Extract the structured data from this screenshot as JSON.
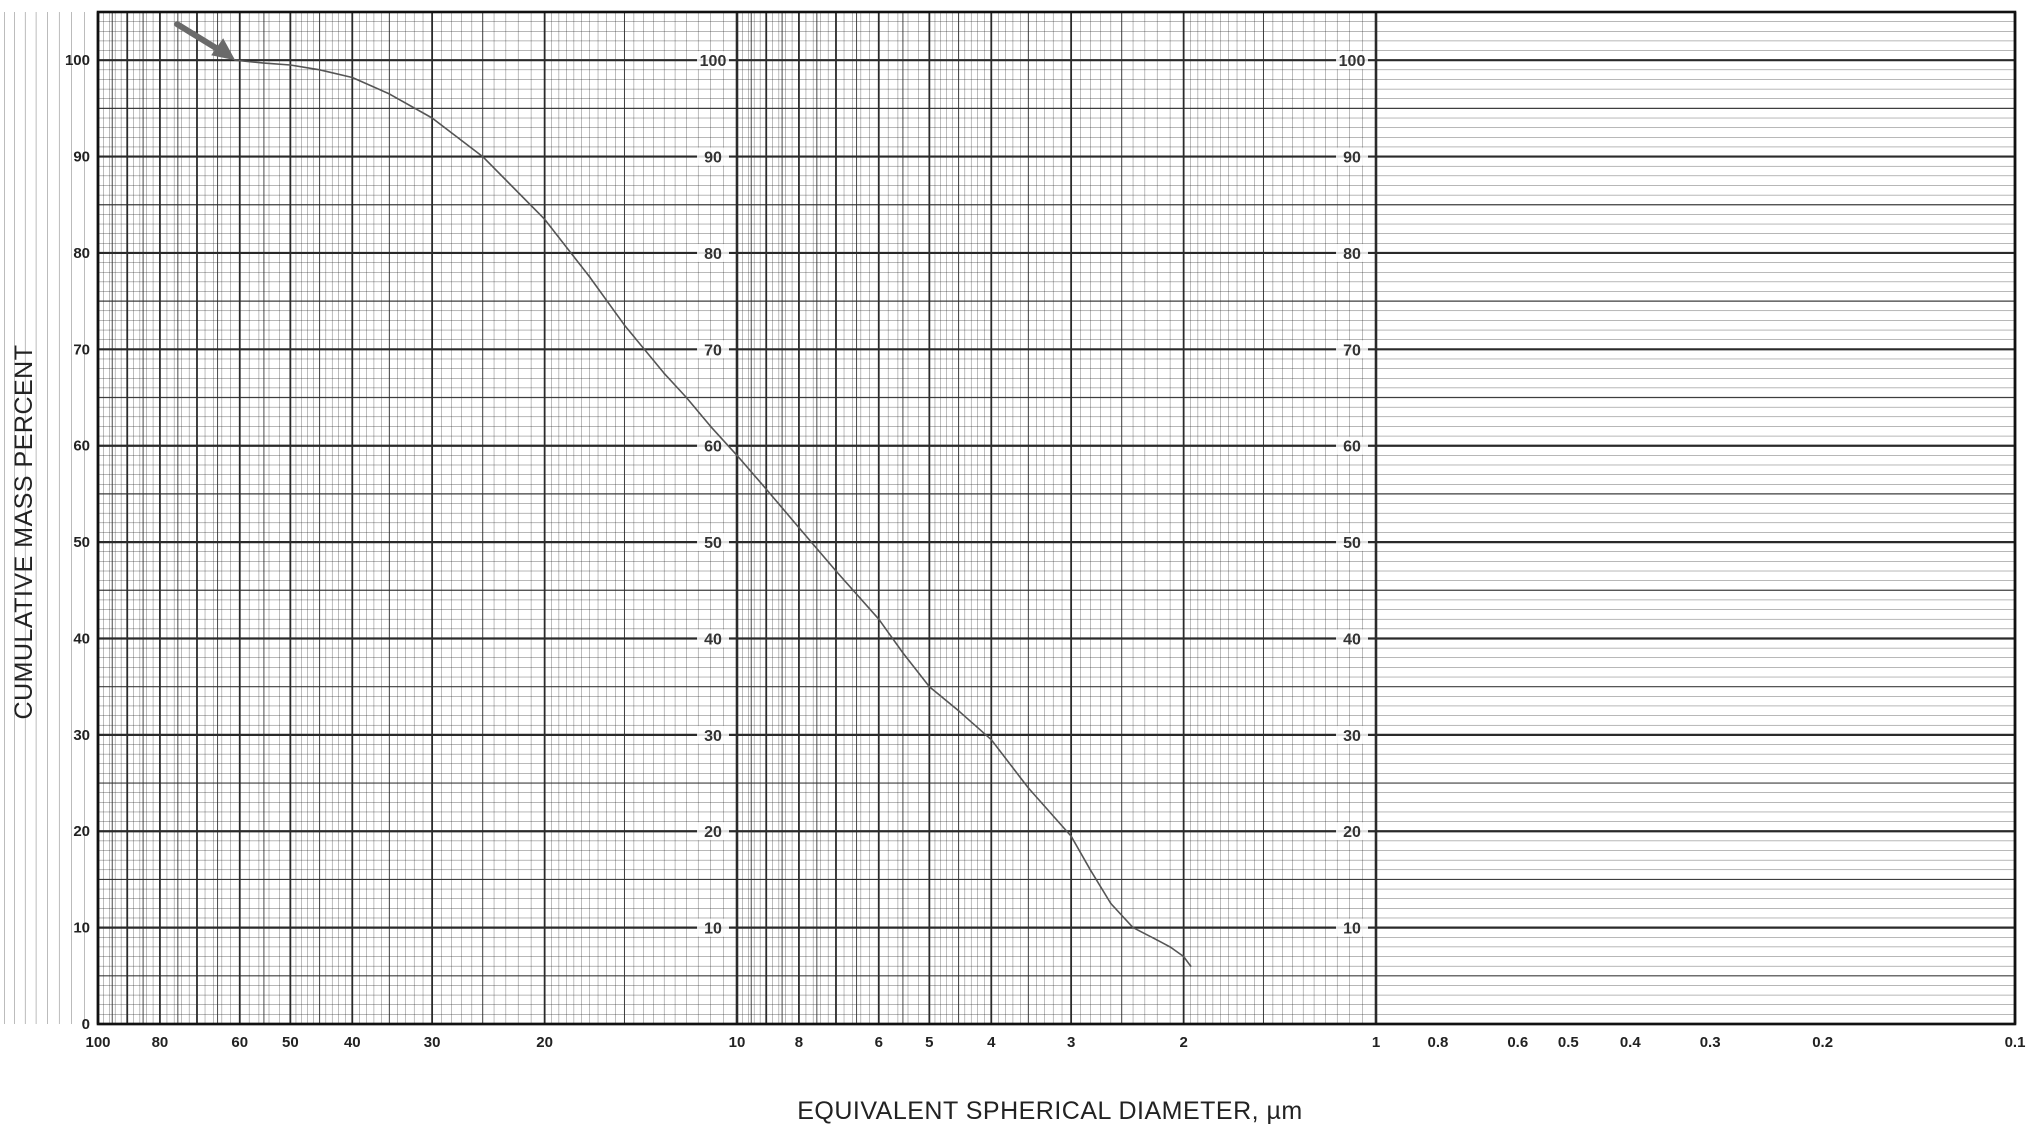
{
  "chart_data": {
    "type": "line",
    "title": "",
    "xlabel": "EQUIVALENT SPHERICAL DIAMETER, µm",
    "ylabel": "CUMULATIVE MASS PERCENT",
    "x_scale": "log",
    "x_direction": "decreasing",
    "xlim": [
      100,
      0.1
    ],
    "ylim": [
      0,
      105
    ],
    "grid": true,
    "legend": "none",
    "x_tick_labels": [
      "100",
      "80",
      "60",
      "50",
      "40",
      "30",
      "20",
      "10",
      "8",
      "6",
      "5",
      "4",
      "3",
      "2",
      "1",
      "0.8",
      "0.6",
      "0.5",
      "0.4",
      "0.3",
      "0.2",
      "0.1"
    ],
    "x_tick_values": [
      100,
      80,
      60,
      50,
      40,
      30,
      20,
      10,
      8,
      6,
      5,
      4,
      3,
      2,
      1,
      0.8,
      0.6,
      0.5,
      0.4,
      0.3,
      0.2,
      0.1
    ],
    "y_tick_labels": [
      "0",
      "10",
      "20",
      "30",
      "40",
      "50",
      "60",
      "70",
      "80",
      "90",
      "100"
    ],
    "y_tick_values": [
      0,
      10,
      20,
      30,
      40,
      50,
      60,
      70,
      80,
      90,
      100
    ],
    "inner_scale_labels": [
      "10",
      "20",
      "30",
      "40",
      "50",
      "60",
      "70",
      "80",
      "90",
      "100"
    ],
    "inner_scale_positions_um": [
      10,
      1
    ],
    "annotation": "arrow-marker-at-start",
    "arrow_target": {
      "x": 61,
      "y": 100
    },
    "series": [
      {
        "x": [
          61,
          55,
          50,
          45,
          40,
          35,
          30,
          25,
          20,
          17,
          15,
          13,
          12,
          11,
          10,
          9,
          8,
          7,
          6,
          5.5,
          5,
          4.5,
          4,
          3.5,
          3,
          2.8,
          2.6,
          2.4,
          2.2,
          2.1,
          2.0,
          1.95
        ],
        "y": [
          100,
          99.7,
          99.5,
          99,
          98.2,
          96.5,
          94,
          90,
          83.5,
          77.5,
          72.5,
          67.5,
          65,
          62,
          59,
          55.5,
          51.5,
          47,
          42,
          38.5,
          35,
          32.5,
          29.5,
          24.5,
          19.5,
          16,
          12.5,
          10,
          8.7,
          8,
          7,
          6
        ]
      }
    ],
    "colors": {
      "grid": "#2a2a2a",
      "curve": "#555555",
      "arrow": "#6a6a6a",
      "background": "#ffffff"
    }
  }
}
